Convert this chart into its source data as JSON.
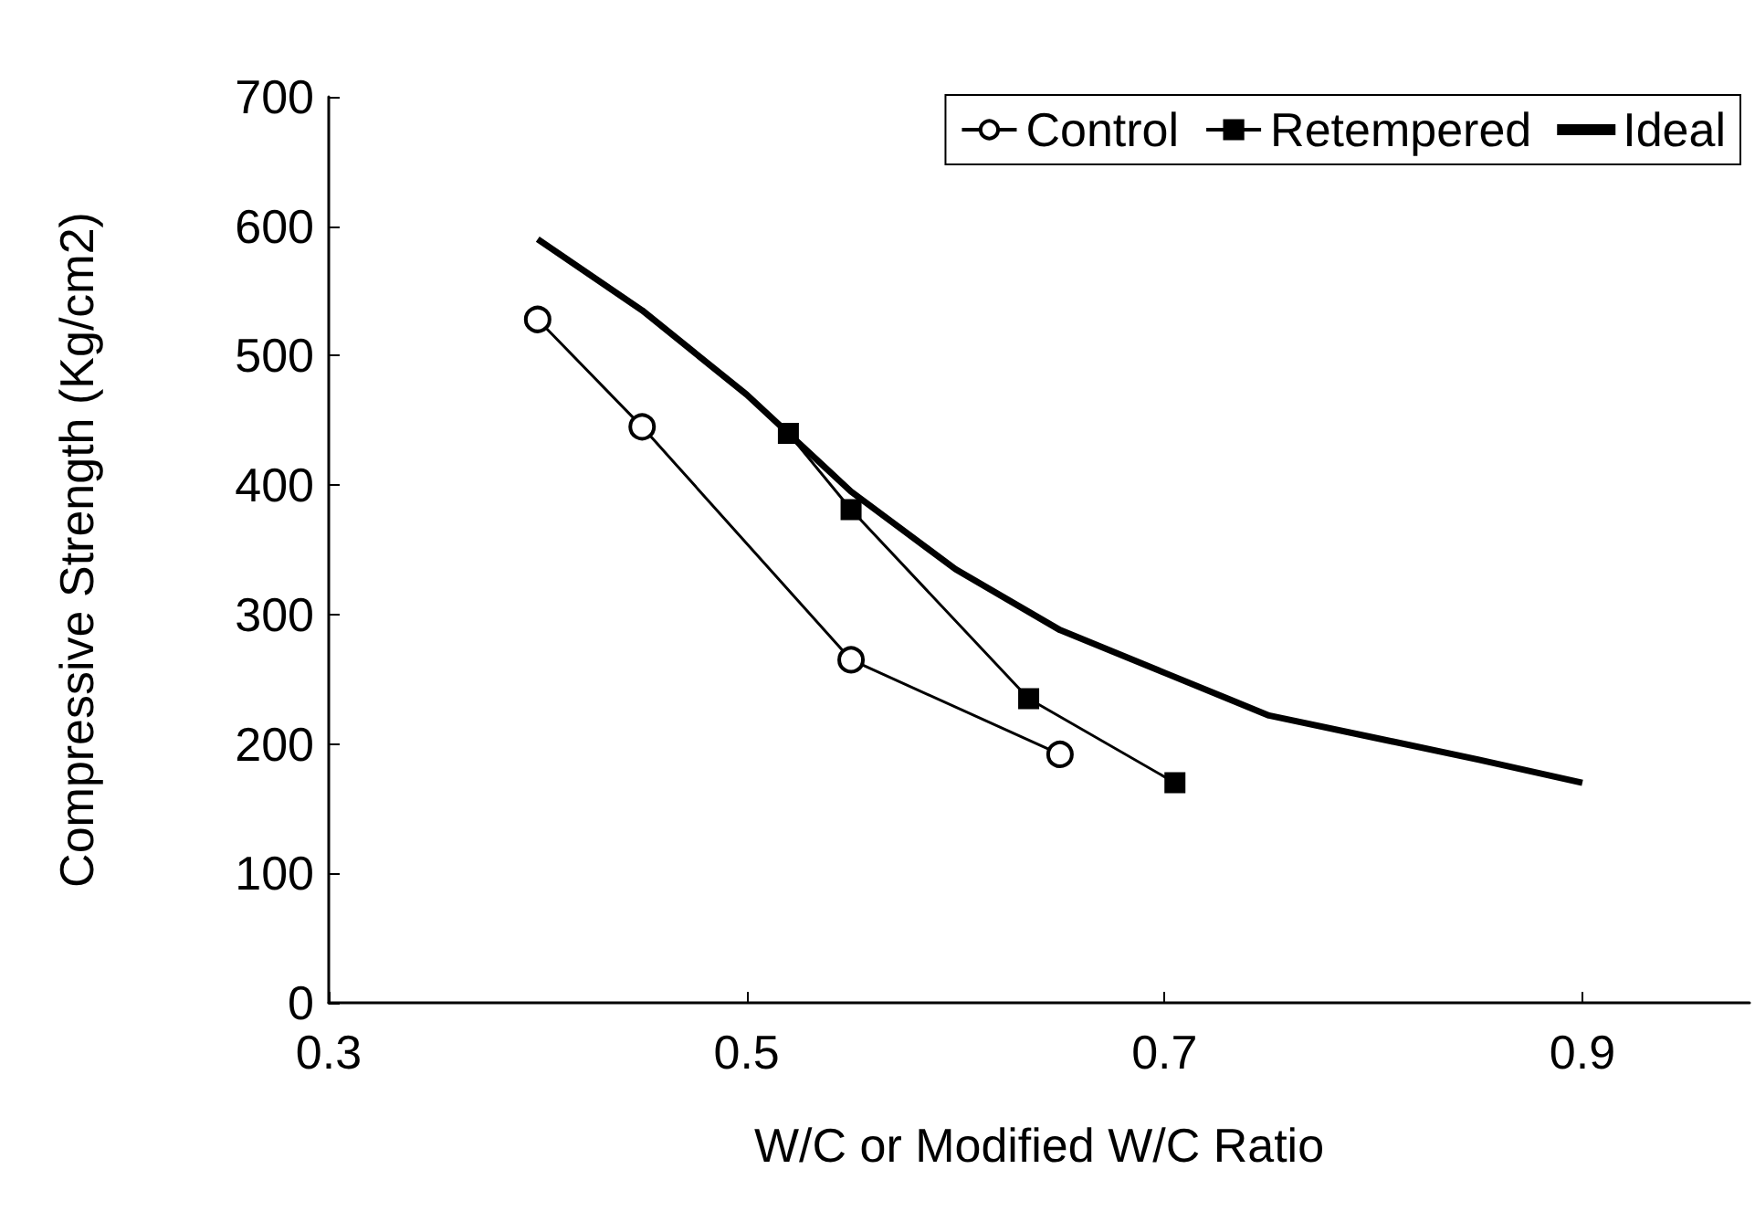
{
  "chart_data": {
    "type": "line",
    "xlabel": "W/C or Modified W/C Ratio",
    "ylabel": "Compressive Strength (Kg/cm2)",
    "xlim": [
      0.3,
      0.98
    ],
    "xticks": [
      0.3,
      0.5,
      0.7,
      0.9
    ],
    "ylim": [
      0,
      700
    ],
    "yticks": [
      0,
      100,
      200,
      300,
      400,
      500,
      600,
      700
    ],
    "grid": false,
    "legend": "top right",
    "series": [
      {
        "name": "Control",
        "color": "#000000",
        "marker": "circle",
        "x": [
          0.4,
          0.45,
          0.55,
          0.65
        ],
        "values": [
          528,
          445,
          265,
          192
        ]
      },
      {
        "name": "Retempered",
        "color": "#000000",
        "marker": "square",
        "x": [
          0.52,
          0.55,
          0.635,
          0.705
        ],
        "values": [
          440,
          381,
          235,
          170
        ]
      },
      {
        "name": "Ideal",
        "color": "#000000",
        "marker": "none",
        "x": [
          0.4,
          0.45,
          0.5,
          0.55,
          0.6,
          0.65,
          0.7,
          0.75,
          0.8,
          0.85,
          0.9
        ],
        "values": [
          590,
          535,
          470,
          395,
          335,
          288,
          255,
          222,
          205,
          188,
          170
        ]
      }
    ]
  }
}
